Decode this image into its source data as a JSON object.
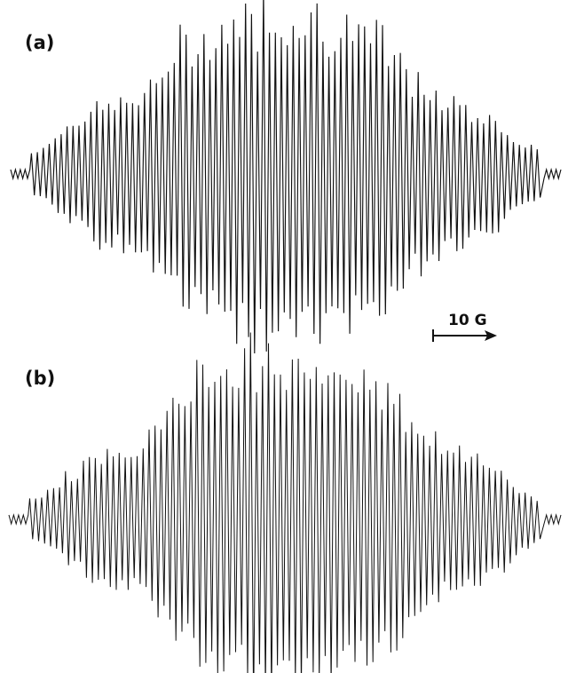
{
  "figure": {
    "background": "#ffffff",
    "trace_color": "#111111",
    "scale_bar": {
      "label": "10 G",
      "icon": "arrow-right-icon"
    }
  },
  "chart_data": [
    {
      "type": "line",
      "panel_label": "(a)",
      "xlabel": "",
      "ylabel": "",
      "grid": false,
      "lines": 86,
      "envelope": {
        "peaks": [
          {
            "center": 0.16,
            "amplitude": 0.35
          },
          {
            "center": 0.34,
            "amplitude": 0.75
          },
          {
            "center": 0.5,
            "amplitude": 1.0
          },
          {
            "center": 0.66,
            "amplitude": 0.75
          },
          {
            "center": 0.84,
            "amplitude": 0.35
          }
        ],
        "baseline_noise": 0.05
      }
    },
    {
      "type": "line",
      "panel_label": "(b)",
      "xlabel": "",
      "ylabel": "",
      "grid": false,
      "lines": 86,
      "envelope": {
        "peaks": [
          {
            "center": 0.16,
            "amplitude": 0.3
          },
          {
            "center": 0.34,
            "amplitude": 0.7
          },
          {
            "center": 0.5,
            "amplitude": 1.0
          },
          {
            "center": 0.66,
            "amplitude": 0.72
          },
          {
            "center": 0.84,
            "amplitude": 0.32
          }
        ],
        "baseline_noise": 0.05
      }
    }
  ]
}
